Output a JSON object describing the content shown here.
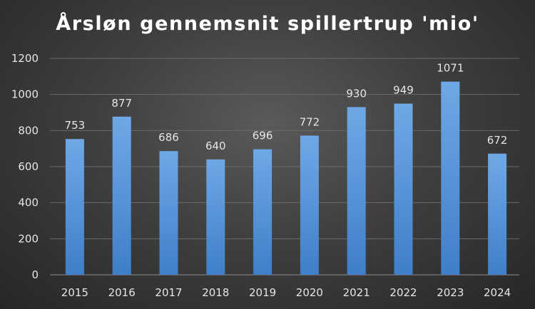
{
  "chart_data": {
    "type": "bar",
    "title": "Årsløn gennemsnit spillertrup 'mio'",
    "categories": [
      "2015",
      "2016",
      "2017",
      "2018",
      "2019",
      "2020",
      "2021",
      "2022",
      "2023",
      "2024"
    ],
    "values": [
      753,
      877,
      686,
      640,
      696,
      772,
      930,
      949,
      1071,
      672
    ],
    "ylim": [
      0,
      1200
    ],
    "yticks": [
      0,
      200,
      400,
      600,
      800,
      1000,
      1200
    ],
    "grid": true,
    "legend": "none",
    "colors": {
      "bar_top": "#6fa8e6",
      "bar_bottom": "#3f7fc8",
      "grid": "#6a6a6a",
      "axis": "#8c8c8c",
      "text": "#e6e6e6"
    }
  }
}
